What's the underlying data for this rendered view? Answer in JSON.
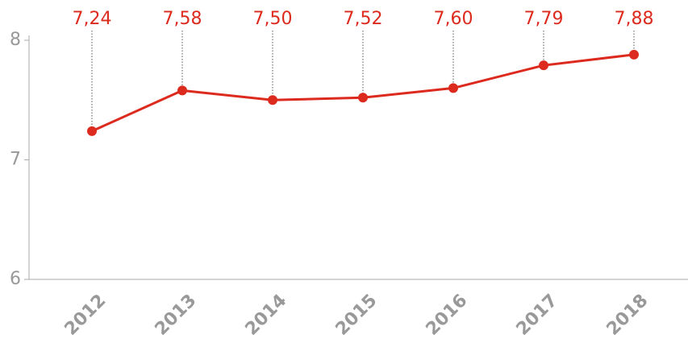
{
  "chart_data": {
    "type": "line",
    "categories": [
      "2012",
      "2013",
      "2014",
      "2015",
      "2016",
      "2017",
      "2018"
    ],
    "values": [
      7.24,
      7.58,
      7.5,
      7.52,
      7.6,
      7.79,
      7.88
    ],
    "value_labels": [
      "7,24",
      "7,58",
      "7,50",
      "7,52",
      "7,60",
      "7,79",
      "7,88"
    ],
    "color": "#dc2a1e",
    "ylim": [
      6,
      8
    ],
    "yticks": [
      6,
      7,
      8
    ],
    "grid": false
  }
}
